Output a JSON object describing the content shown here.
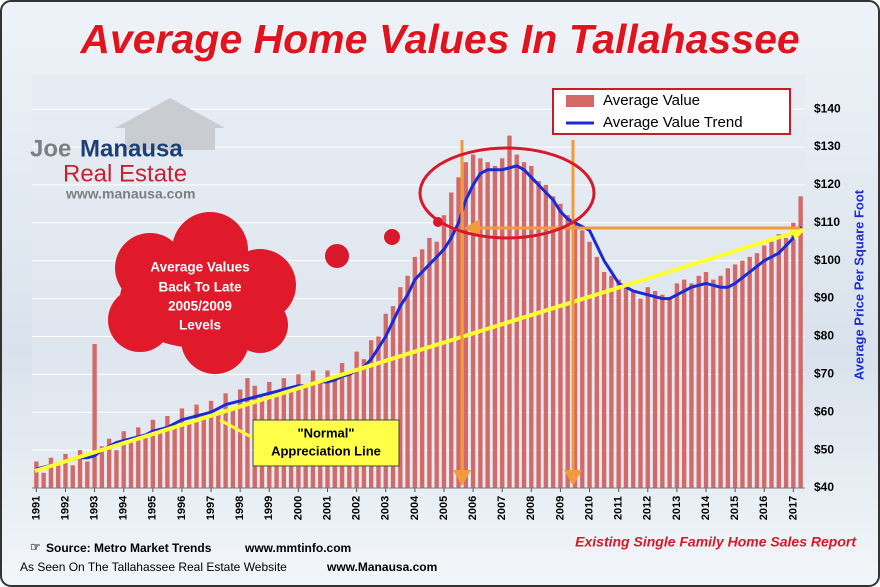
{
  "chart_data": {
    "type": "bar_line",
    "title": "Average Home Values In Tallahassee",
    "logo": {
      "first": "Joe",
      "last": "Manausa",
      "subtitle": "Real Estate",
      "url": "www.manausa.com"
    },
    "cloud_text": [
      "Average Values",
      "Back To Late",
      "2005/2009",
      "Levels"
    ],
    "annotation": [
      "\"Normal\"",
      "Appreciation Line"
    ],
    "y_label": "Average Price Per Square Foot",
    "source": [
      "Source:  Metro Market Trends",
      "www.mmtinfo.com"
    ],
    "website": [
      "As Seen On The Tallahassee Real Estate Website",
      "www.Manausa.com"
    ],
    "report": "Existing Single Family Home Sales Report",
    "x": [
      1991,
      1991.25,
      1991.5,
      1991.75,
      1992,
      1992.25,
      1992.5,
      1992.75,
      1993,
      1993.25,
      1993.5,
      1993.75,
      1994,
      1994.25,
      1994.5,
      1994.75,
      1995,
      1995.25,
      1995.5,
      1995.75,
      1996,
      1996.25,
      1996.5,
      1996.75,
      1997,
      1997.25,
      1997.5,
      1997.75,
      1998,
      1998.25,
      1998.5,
      1998.75,
      1999,
      1999.25,
      1999.5,
      1999.75,
      2000,
      2000.25,
      2000.5,
      2000.75,
      2001,
      2001.25,
      2001.5,
      2001.75,
      2002,
      2002.25,
      2002.5,
      2002.75,
      2003,
      2003.25,
      2003.5,
      2003.75,
      2004,
      2004.25,
      2004.5,
      2004.75,
      2005,
      2005.25,
      2005.5,
      2005.75,
      2006,
      2006.25,
      2006.5,
      2006.75,
      2007,
      2007.25,
      2007.5,
      2007.75,
      2008,
      2008.25,
      2008.5,
      2008.75,
      2009,
      2009.25,
      2009.5,
      2009.75,
      2010,
      2010.25,
      2010.5,
      2010.75,
      2011,
      2011.25,
      2011.5,
      2011.75,
      2012,
      2012.25,
      2012.5,
      2012.75,
      2013,
      2013.25,
      2013.5,
      2013.75,
      2014,
      2014.25,
      2014.5,
      2014.75,
      2015,
      2015.25,
      2015.5,
      2015.75,
      2016,
      2016.25,
      2016.5,
      2016.75,
      2017,
      2017.25
    ],
    "series": [
      {
        "name": "Average Value",
        "color": "#d46a68",
        "values": [
          47,
          44,
          48,
          46,
          49,
          46,
          50,
          47,
          78,
          51,
          53,
          50,
          55,
          52,
          56,
          54,
          58,
          55,
          59,
          56,
          61,
          57,
          62,
          59,
          63,
          60,
          65,
          61,
          66,
          69,
          67,
          64,
          68,
          65,
          69,
          66,
          70,
          67,
          71,
          68,
          71,
          69,
          73,
          70,
          76,
          74,
          79,
          80,
          86,
          88,
          93,
          96,
          101,
          103,
          106,
          105,
          112,
          118,
          122,
          126,
          128,
          127,
          126,
          125,
          127,
          133,
          128,
          126,
          125,
          121,
          120,
          117,
          115,
          112,
          110,
          108,
          105,
          101,
          97,
          96,
          95,
          93,
          92,
          90,
          93,
          92,
          91,
          90,
          94,
          95,
          94,
          96,
          97,
          95,
          96,
          98,
          99,
          100,
          101,
          102,
          104,
          105,
          107,
          106,
          110,
          117
        ]
      },
      {
        "name": "Average Value Trend",
        "color": "#1a2bd6",
        "values": [
          45,
          45.5,
          46,
          46.5,
          47,
          47.5,
          48,
          48,
          48.5,
          50,
          51,
          52,
          52.5,
          53,
          53.5,
          54,
          55,
          55.5,
          56,
          57,
          58,
          58.5,
          59,
          59.5,
          60,
          61,
          62,
          62.5,
          63,
          63.5,
          64,
          64.5,
          65,
          65.5,
          66,
          66.5,
          67,
          67,
          67.5,
          68,
          68,
          68.5,
          69.5,
          70,
          71,
          72,
          74,
          77,
          80,
          84,
          88,
          91,
          95,
          97,
          99,
          101,
          103,
          106,
          110,
          116,
          120,
          123,
          124,
          124,
          124,
          124.5,
          125,
          124,
          122,
          120,
          118,
          116,
          113,
          111,
          110,
          109,
          108,
          104,
          100,
          97,
          94,
          93,
          92,
          91.5,
          91,
          90.5,
          90,
          90,
          91,
          92,
          93,
          93.5,
          94,
          93.5,
          93,
          93,
          94,
          95.5,
          97,
          98.5,
          100,
          101,
          102,
          104,
          106,
          109
        ]
      }
    ],
    "xlim": [
      1990.85,
      2017.4
    ],
    "xticks": [
      1991,
      1992,
      1993,
      1994,
      1995,
      1996,
      1997,
      1998,
      1999,
      2000,
      2001,
      2002,
      2003,
      2004,
      2005,
      2006,
      2007,
      2008,
      2009,
      2010,
      2011,
      2012,
      2013,
      2014,
      2015,
      2016,
      2017
    ],
    "ylim": [
      40,
      149
    ],
    "yticks": [
      {
        "value": 40,
        "label": "$40"
      },
      {
        "value": 50,
        "label": "$50"
      },
      {
        "value": 60,
        "label": "$60"
      },
      {
        "value": 70,
        "label": "$70"
      },
      {
        "value": 80,
        "label": "$80"
      },
      {
        "value": 90,
        "label": "$90"
      },
      {
        "value": 100,
        "label": "$100"
      },
      {
        "value": 110,
        "label": "$110"
      },
      {
        "value": 120,
        "label": "$120"
      },
      {
        "value": 130,
        "label": "$130"
      },
      {
        "value": 140,
        "label": "$140"
      }
    ],
    "grid": true
  }
}
